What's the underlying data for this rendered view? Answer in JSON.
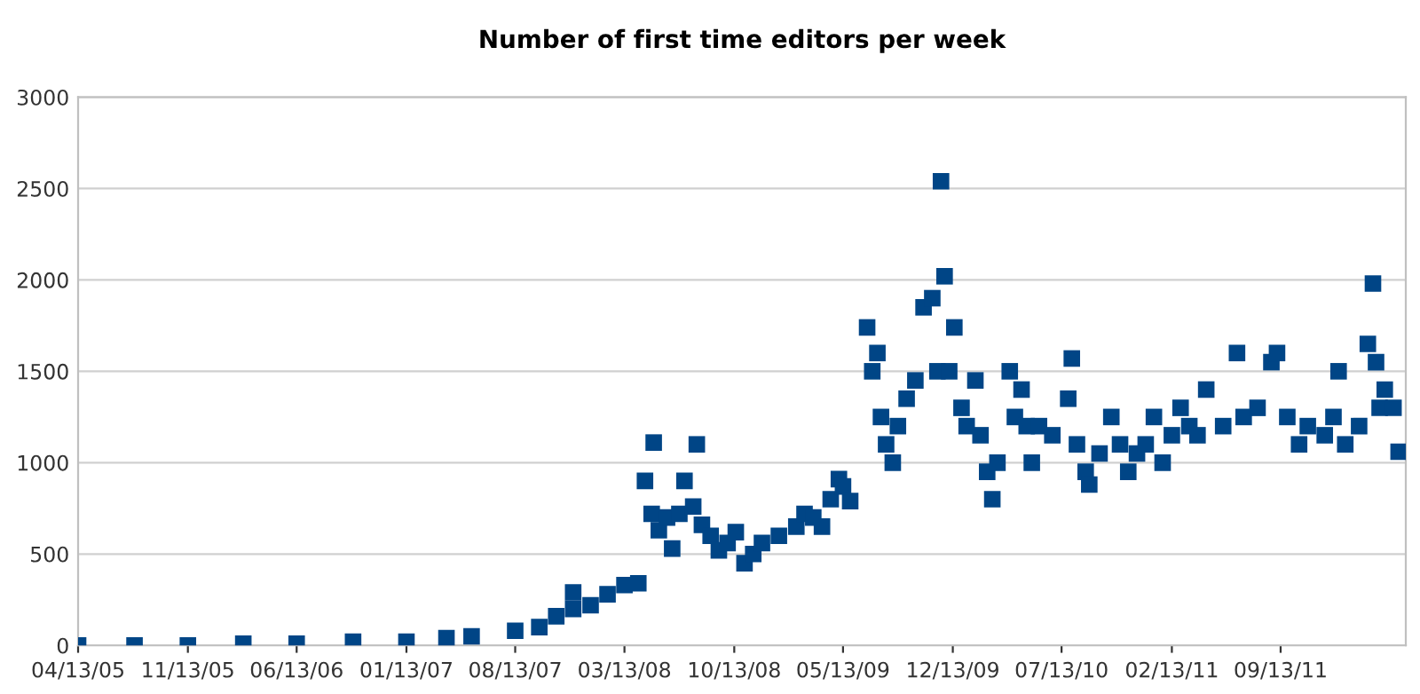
{
  "chart_data": {
    "type": "scatter",
    "title": "Number of first time editors per week",
    "marker": "square",
    "grid": "y",
    "xlim": [
      "2005-04-13",
      "2012-05-14"
    ],
    "xticks": [
      {
        "value": "2005-04-13",
        "label": "04/13/05"
      },
      {
        "value": "2005-11-13",
        "label": "11/13/05"
      },
      {
        "value": "2006-06-13",
        "label": "06/13/06"
      },
      {
        "value": "2007-01-13",
        "label": "01/13/07"
      },
      {
        "value": "2007-08-13",
        "label": "08/13/07"
      },
      {
        "value": "2008-03-13",
        "label": "03/13/08"
      },
      {
        "value": "2008-10-13",
        "label": "10/13/08"
      },
      {
        "value": "2009-05-13",
        "label": "05/13/09"
      },
      {
        "value": "2009-12-13",
        "label": "12/13/09"
      },
      {
        "value": "2010-07-13",
        "label": "07/13/10"
      },
      {
        "value": "2011-02-13",
        "label": "02/13/11"
      },
      {
        "value": "2011-09-13",
        "label": "09/13/11"
      }
    ],
    "ylim": [
      0,
      3000
    ],
    "yticks": [
      0,
      500,
      1000,
      1500,
      2000,
      2500,
      3000
    ],
    "series": [
      {
        "color": "#004586",
        "x": [
          "2005-04-13",
          "2005-08-01",
          "2005-11-13",
          "2006-03-01",
          "2006-06-13",
          "2006-10-01",
          "2007-01-13",
          "2007-04-01",
          "2007-05-20",
          "2007-08-13",
          "2007-09-29",
          "2007-11-01",
          "2007-12-04",
          "2007-12-04",
          "2008-01-07",
          "2008-02-09",
          "2008-03-13",
          "2008-04-09",
          "2008-04-22",
          "2008-05-09",
          "2008-05-05",
          "2008-05-19",
          "2008-06-04",
          "2008-06-14",
          "2008-06-28",
          "2008-07-08",
          "2008-07-25",
          "2008-08-01",
          "2008-08-11",
          "2008-08-28",
          "2008-09-13",
          "2008-09-30",
          "2008-10-16",
          "2008-11-02",
          "2008-11-19",
          "2008-12-06",
          "2009-01-08",
          "2009-02-11",
          "2009-02-27",
          "2009-03-16",
          "2009-04-02",
          "2009-04-19",
          "2009-05-05",
          "2009-05-13",
          "2009-05-27",
          "2009-06-29",
          "2009-07-09",
          "2009-07-19",
          "2009-07-26",
          "2009-08-05",
          "2009-08-18",
          "2009-08-28",
          "2009-09-14",
          "2009-10-01",
          "2009-10-17",
          "2009-11-03",
          "2009-11-13",
          "2009-11-20",
          "2009-11-27",
          "2009-12-06",
          "2009-12-16",
          "2009-12-30",
          "2010-01-09",
          "2010-01-26",
          "2010-02-05",
          "2010-02-18",
          "2010-02-28",
          "2010-03-10",
          "2010-04-03",
          "2010-04-13",
          "2010-04-26",
          "2010-05-06",
          "2010-05-16",
          "2010-05-30",
          "2010-06-25",
          "2010-07-26",
          "2010-08-02",
          "2010-08-12",
          "2010-08-29",
          "2010-09-05",
          "2010-09-25",
          "2010-10-18",
          "2010-11-04",
          "2010-11-20",
          "2010-12-07",
          "2010-12-24",
          "2011-01-09",
          "2011-01-26",
          "2011-02-13",
          "2011-03-02",
          "2011-03-19",
          "2011-04-04",
          "2011-04-21",
          "2011-05-24",
          "2011-06-20",
          "2011-07-03",
          "2011-07-30",
          "2011-08-26",
          "2011-09-06",
          "2011-09-26",
          "2011-10-19",
          "2011-11-05",
          "2011-12-08",
          "2011-12-25",
          "2012-01-04",
          "2012-01-17",
          "2012-02-13",
          "2012-03-01",
          "2012-03-11",
          "2012-03-17",
          "2012-03-24",
          "2012-04-03",
          "2012-04-20",
          "2012-04-30"
        ],
        "values": [
          0,
          0,
          0,
          10,
          10,
          20,
          20,
          40,
          50,
          80,
          100,
          160,
          290,
          200,
          220,
          280,
          330,
          340,
          900,
          1110,
          720,
          630,
          700,
          530,
          720,
          900,
          760,
          1100,
          660,
          600,
          520,
          560,
          620,
          450,
          500,
          560,
          600,
          650,
          720,
          700,
          650,
          800,
          910,
          870,
          790,
          1740,
          1500,
          1600,
          1250,
          1100,
          1000,
          1200,
          1350,
          1450,
          1850,
          1900,
          1500,
          2540,
          2020,
          1500,
          1740,
          1300,
          1200,
          1450,
          1150,
          950,
          800,
          1000,
          1500,
          1250,
          1400,
          1200,
          1000,
          1200,
          1150,
          1350,
          1570,
          1100,
          950,
          880,
          1050,
          1250,
          1100,
          950,
          1050,
          1100,
          1250,
          1000,
          1150,
          1300,
          1200,
          1150,
          1400,
          1200,
          1600,
          1250,
          1300,
          1550,
          1600,
          1250,
          1100,
          1200,
          1150,
          1250,
          1500,
          1100,
          1200,
          1650,
          1980,
          1550,
          1300,
          1400,
          1300,
          1060
        ]
      }
    ]
  }
}
